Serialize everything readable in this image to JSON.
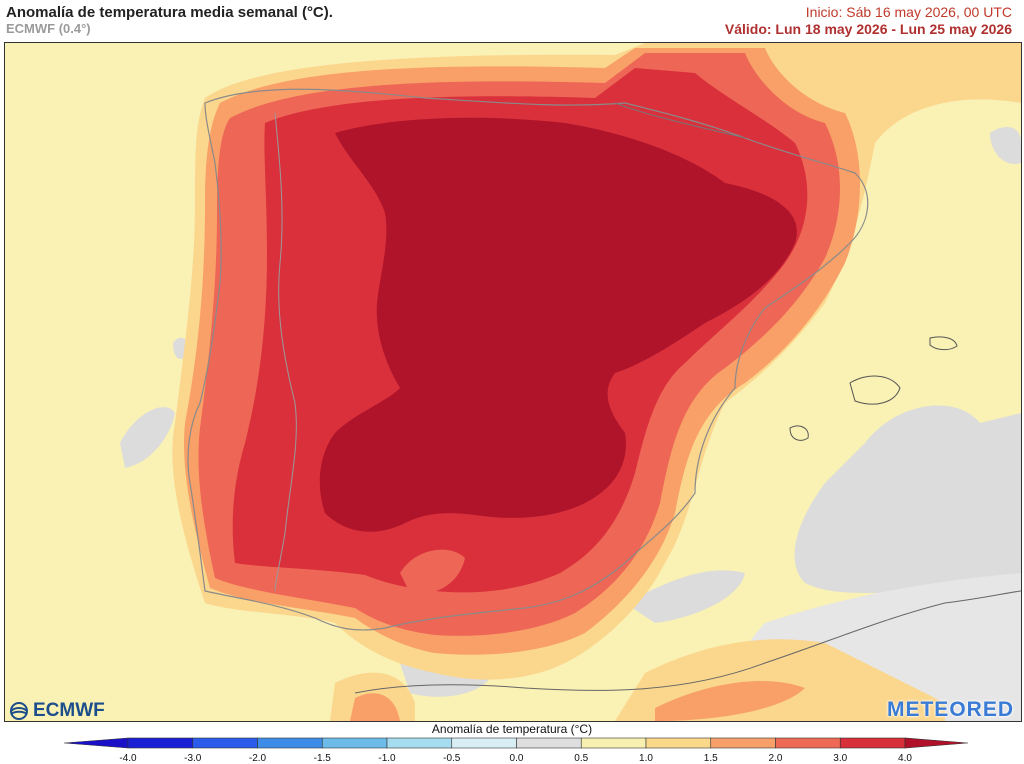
{
  "header": {
    "title": "Anomalía de temperatura media semanal (°C).",
    "subtitle": "ECMWF (0.4°)",
    "init": "Inicio: Sáb 16 may 2026, 00 UTC",
    "valid": "Válido: Lun 18 may 2026 - Lun 25 may 2026"
  },
  "logos": {
    "ecmwf": "ECMWF",
    "meteored": "METEORED"
  },
  "legend": {
    "title": "Anomalía de temperatura (°C)",
    "ticks": [
      "-4.0",
      "-3.0",
      "-2.0",
      "-1.5",
      "-1.0",
      "-0.5",
      "0.0",
      "0.5",
      "1.0",
      "1.5",
      "2.0",
      "3.0",
      "4.0"
    ],
    "colors": [
      "#1a1fd6",
      "#2a5bea",
      "#3d8de8",
      "#6cbbe8",
      "#a6dcf0",
      "#d8eef4",
      "#dedede",
      "#f7f0b0",
      "#fbd98a",
      "#f8a06a",
      "#ee6a55",
      "#d8303a"
    ]
  },
  "colors": {
    "sea_neutral": "#dcdcdc",
    "anom_0_5": "#faf1b4",
    "anom_1_0": "#fbd78e",
    "anom_1_5": "#f8a068",
    "anom_2_0": "#ee6655",
    "anom_3_0": "#d9303c",
    "anom_4_0": "#b0142a"
  }
}
